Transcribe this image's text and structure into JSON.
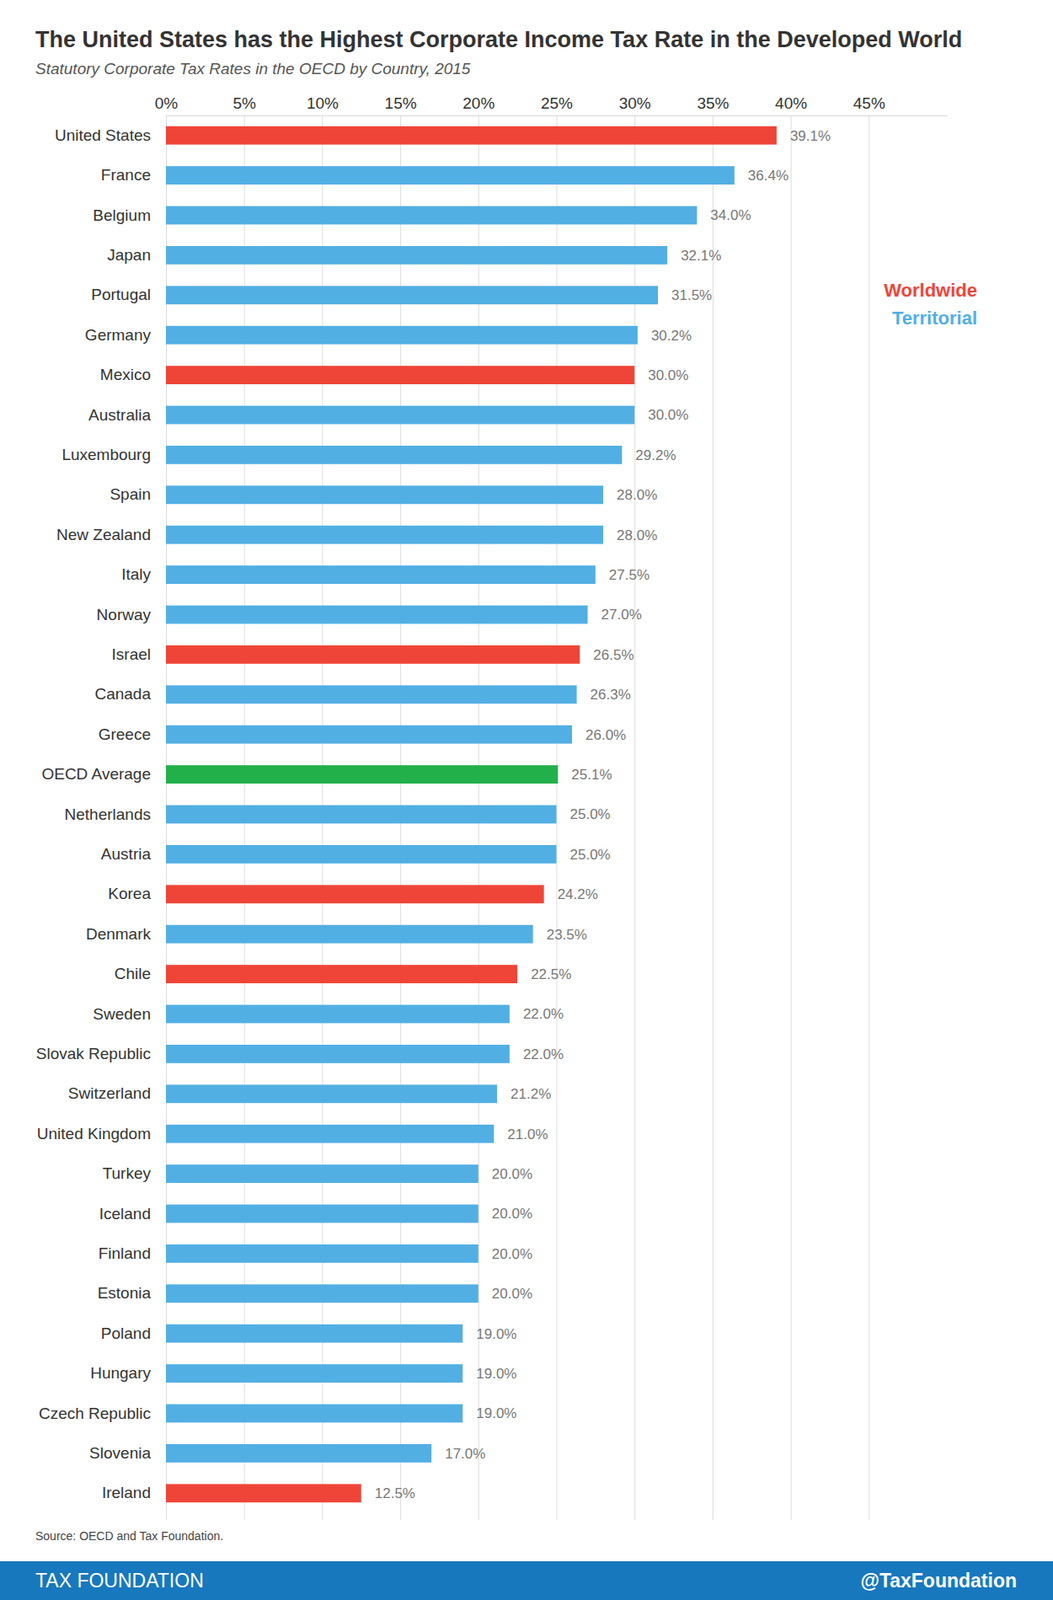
{
  "chart_data": {
    "type": "bar",
    "orientation": "horizontal",
    "title": "The United States has the Highest Corporate Income Tax Rate in the Developed World",
    "subtitle": "Statutory Corporate Tax Rates in the OECD by Country, 2015",
    "categories": [
      "United States",
      "France",
      "Belgium",
      "Japan",
      "Portugal",
      "Germany",
      "Mexico",
      "Australia",
      "Luxembourg",
      "Spain",
      "New Zealand",
      "Italy",
      "Norway",
      "Israel",
      "Canada",
      "Greece",
      "OECD Average",
      "Netherlands",
      "Austria",
      "Korea",
      "Denmark",
      "Chile",
      "Sweden",
      "Slovak Republic",
      "Switzerland",
      "United Kingdom",
      "Turkey",
      "Iceland",
      "Finland",
      "Estonia",
      "Poland",
      "Hungary",
      "Czech Republic",
      "Slovenia",
      "Ireland"
    ],
    "values": [
      39.1,
      36.4,
      34.0,
      32.1,
      31.5,
      30.2,
      30.0,
      30.0,
      29.2,
      28.0,
      28.0,
      27.5,
      27.0,
      26.5,
      26.3,
      26.0,
      25.1,
      25.0,
      25.0,
      24.2,
      23.5,
      22.5,
      22.0,
      22.0,
      21.2,
      21.0,
      20.0,
      20.0,
      20.0,
      20.0,
      19.0,
      19.0,
      19.0,
      17.0,
      12.5
    ],
    "value_labels": [
      "39.1%",
      "36.4%",
      "34.0%",
      "32.1%",
      "31.5%",
      "30.2%",
      "30.0%",
      "30.0%",
      "29.2%",
      "28.0%",
      "28.0%",
      "27.5%",
      "27.0%",
      "26.5%",
      "26.3%",
      "26.0%",
      "25.1%",
      "25.0%",
      "25.0%",
      "24.2%",
      "23.5%",
      "22.5%",
      "22.0%",
      "22.0%",
      "21.2%",
      "21.0%",
      "20.0%",
      "20.0%",
      "20.0%",
      "20.0%",
      "19.0%",
      "19.0%",
      "19.0%",
      "17.0%",
      "12.5%"
    ],
    "colors": [
      "#ef4538",
      "#52afe3",
      "#52afe3",
      "#52afe3",
      "#52afe3",
      "#52afe3",
      "#ef4538",
      "#52afe3",
      "#52afe3",
      "#52afe3",
      "#52afe3",
      "#52afe3",
      "#52afe3",
      "#ef4538",
      "#52afe3",
      "#52afe3",
      "#22b04b",
      "#52afe3",
      "#52afe3",
      "#ef4538",
      "#52afe3",
      "#ef4538",
      "#52afe3",
      "#52afe3",
      "#52afe3",
      "#52afe3",
      "#52afe3",
      "#52afe3",
      "#52afe3",
      "#52afe3",
      "#52afe3",
      "#52afe3",
      "#52afe3",
      "#52afe3",
      "#ef4538"
    ],
    "xlim": [
      0,
      50
    ],
    "xticks": [
      {
        "value": 0,
        "label": "0%"
      },
      {
        "value": 5,
        "label": "5%"
      },
      {
        "value": 10,
        "label": "10%"
      },
      {
        "value": 15,
        "label": "15%"
      },
      {
        "value": 20,
        "label": "20%"
      },
      {
        "value": 25,
        "label": "25%"
      },
      {
        "value": 30,
        "label": "30%"
      },
      {
        "value": 35,
        "label": "35%"
      },
      {
        "value": 40,
        "label": "40%"
      },
      {
        "value": 45,
        "label": "45%"
      }
    ],
    "grid": true,
    "data_labels": true,
    "legend": "right",
    "legend_items": [
      {
        "name": "Worldwide",
        "color": "#ef4538"
      },
      {
        "name": "Territorial",
        "color": "#52afe3"
      }
    ],
    "source": "Source: OECD and Tax Foundation.",
    "footer": {
      "left": "TAX FOUNDATION",
      "right": "@TaxFoundation"
    }
  }
}
